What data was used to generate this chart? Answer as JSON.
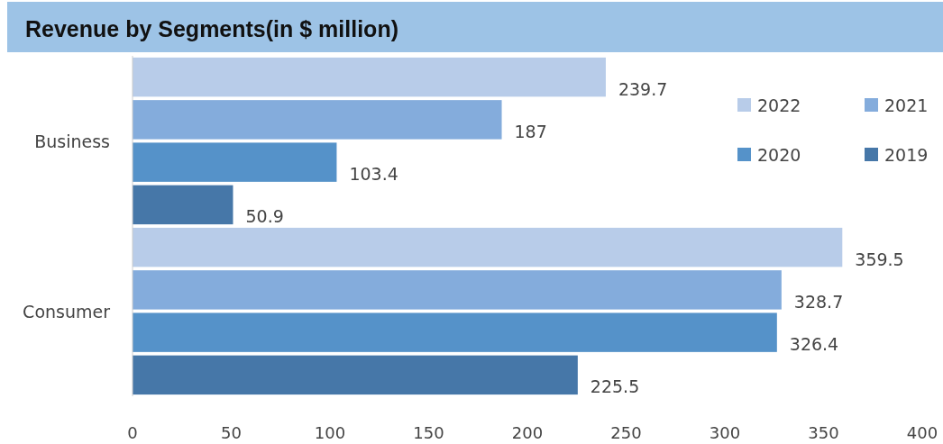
{
  "chart_data": {
    "type": "bar",
    "orientation": "horizontal",
    "title": "Revenue by Segments(in $ million)",
    "categories": [
      "Business",
      "Consumer"
    ],
    "series": [
      {
        "name": "2022",
        "color": "#b8cce9",
        "values": [
          239.7,
          359.5
        ]
      },
      {
        "name": "2021",
        "color": "#84acdc",
        "values": [
          187,
          328.7
        ]
      },
      {
        "name": "2020",
        "color": "#5592c9",
        "values": [
          103.4,
          326.4
        ]
      },
      {
        "name": "2019",
        "color": "#4677a8",
        "values": [
          50.9,
          225.5
        ]
      }
    ],
    "xlim": [
      0,
      400
    ],
    "xticks": [
      0,
      50,
      100,
      150,
      200,
      250,
      300,
      350,
      400
    ],
    "data_labels": true,
    "grid": false,
    "legend": "top right"
  }
}
